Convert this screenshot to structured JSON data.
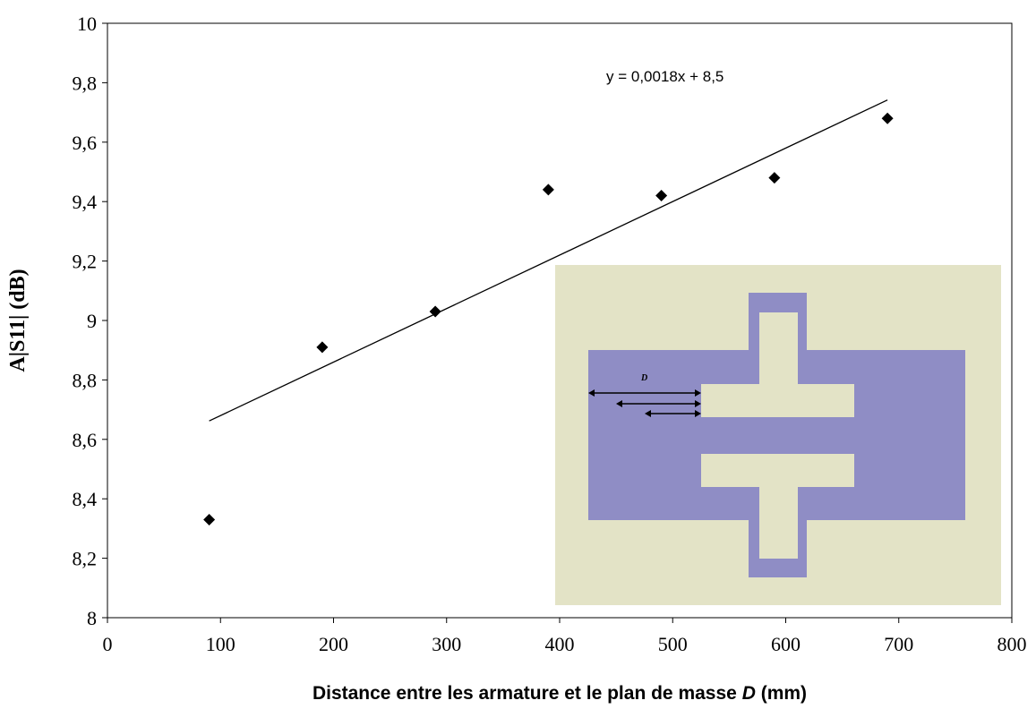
{
  "chart_data": {
    "type": "scatter",
    "title": "",
    "xlabel": "Distance entre les armature et le plan de masse",
    "xlabel_var": "D",
    "xlabel_unit": "(mm)",
    "ylabel": "A|S11| (dB)",
    "xlim": [
      0,
      800
    ],
    "ylim": [
      8,
      10
    ],
    "x_ticks": [
      0,
      100,
      200,
      300,
      400,
      500,
      600,
      700,
      800
    ],
    "x_tick_labels": [
      "0",
      "100",
      "200",
      "300",
      "400",
      "500",
      "600",
      "700",
      "800"
    ],
    "y_ticks": [
      8,
      8.2,
      8.4,
      8.6,
      8.8,
      9,
      9.2,
      9.4,
      9.6,
      9.8,
      10
    ],
    "y_tick_labels": [
      "8",
      "8,2",
      "8,4",
      "8,6",
      "8,8",
      "9",
      "9,2",
      "9,4",
      "9,6",
      "9,8",
      "10"
    ],
    "grid": false,
    "legend": "none",
    "marker": "diamond",
    "marker_color": "#000000",
    "series": [
      {
        "x": [
          90,
          190,
          290,
          390,
          490,
          590,
          690
        ],
        "y": [
          8.33,
          8.91,
          9.03,
          9.44,
          9.42,
          9.48,
          9.68
        ]
      }
    ],
    "trendline": {
      "slope": 0.0018,
      "intercept": 8.5,
      "x_range": [
        90,
        690
      ],
      "equation": "y = 0,0018x + 8,5"
    },
    "inset": {
      "label": "D",
      "background_color": "#e3e3c6",
      "plate_color": "#8f8dc5"
    }
  }
}
